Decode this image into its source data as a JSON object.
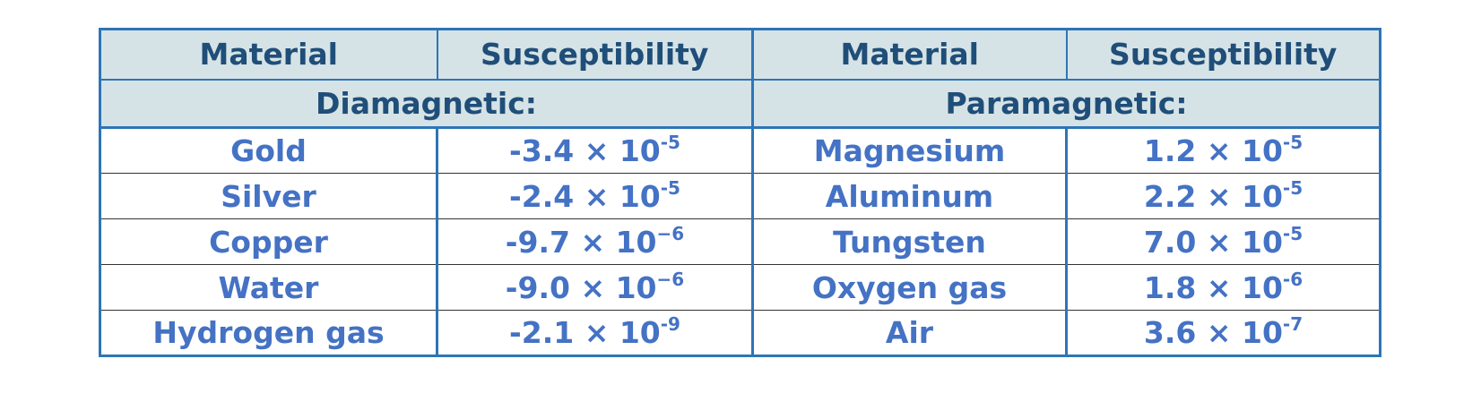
{
  "headers": {
    "left_material": "Material",
    "left_susceptibility": "Susceptibility",
    "right_material": "Material",
    "right_susceptibility": "Susceptibility"
  },
  "sections": {
    "left": "Diamagnetic:",
    "right": "Paramagnetic:"
  },
  "rows": [
    {
      "dia_material": "Gold",
      "dia_mantissa": "-3.4",
      "dia_exponent": "-5",
      "para_material": "Magnesium",
      "para_mantissa": "1.2",
      "para_exponent": "-5"
    },
    {
      "dia_material": "Silver",
      "dia_mantissa": "-2.4",
      "dia_exponent": "-5",
      "para_material": "Aluminum",
      "para_mantissa": "2.2",
      "para_exponent": "-5"
    },
    {
      "dia_material": "Copper",
      "dia_mantissa": "-9.7",
      "dia_exponent": "−6",
      "para_material": "Tungsten",
      "para_mantissa": "7.0",
      "para_exponent": "-5"
    },
    {
      "dia_material": "Water",
      "dia_mantissa": "-9.0",
      "dia_exponent": "−6",
      "para_material": "Oxygen gas",
      "para_mantissa": "1.8",
      "para_exponent": "-6"
    },
    {
      "dia_material": "Hydrogen gas",
      "dia_mantissa": "-2.1",
      "dia_exponent": "-9",
      "para_material": "Air",
      "para_mantissa": "3.6",
      "para_exponent": "-7"
    }
  ],
  "multiplier": "× 10",
  "colors": {
    "border": "#2e75b6",
    "header_bg": "#d6e3e6",
    "header_text": "#1f4e79",
    "body_text": "#4472c4"
  }
}
